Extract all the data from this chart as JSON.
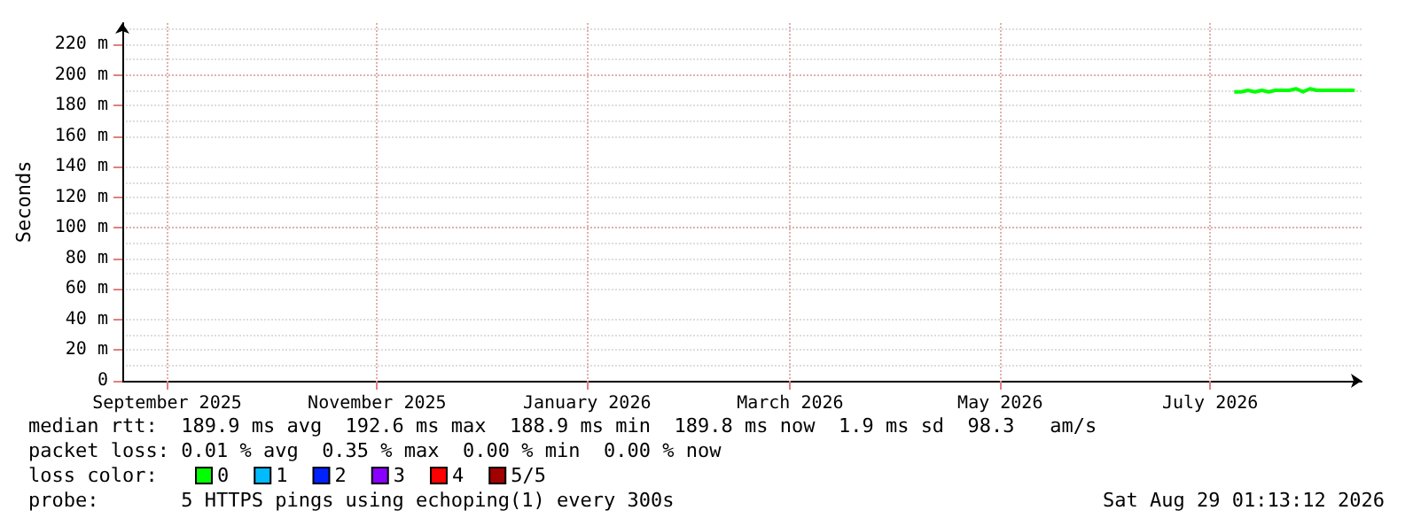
{
  "chart_data": {
    "type": "line",
    "ylabel": "Seconds",
    "xlim": [
      "2025-08-19",
      "2026-08-14"
    ],
    "xticks": [
      {
        "value": "2025-09-01",
        "label": "September 2025"
      },
      {
        "value": "2025-11-01",
        "label": "November 2025"
      },
      {
        "value": "2026-01-01",
        "label": "January 2026"
      },
      {
        "value": "2026-03-01",
        "label": "March 2026"
      },
      {
        "value": "2026-05-01",
        "label": "May 2026"
      },
      {
        "value": "2026-07-01",
        "label": "July 2026"
      }
    ],
    "ylim": [
      0,
      234
    ],
    "yticks": [
      0,
      {
        "value": 20,
        "label": "20 m"
      },
      {
        "value": 40,
        "label": "40 m"
      },
      {
        "value": 60,
        "label": "60 m"
      },
      {
        "value": 80,
        "label": "80 m"
      },
      {
        "value": 100,
        "label": "100 m"
      },
      {
        "value": 120,
        "label": "120 m"
      },
      {
        "value": 140,
        "label": "140 m"
      },
      {
        "value": 160,
        "label": "160 m"
      },
      {
        "value": 180,
        "label": "180 m"
      },
      {
        "value": 200,
        "label": "200 m"
      },
      {
        "value": 220,
        "label": "220 m"
      }
    ],
    "grid": true,
    "legend": "bottom left",
    "marker": "none",
    "line_style": "solid",
    "series": [
      {
        "name": "0",
        "color": "#00ff00",
        "x": [
          "2026-07-08",
          "2026-07-10",
          "2026-07-12",
          "2026-07-14",
          "2026-07-16",
          "2026-07-18",
          "2026-07-20",
          "2026-07-22",
          "2026-07-24",
          "2026-07-26",
          "2026-07-28",
          "2026-07-30",
          "2026-08-01",
          "2026-08-03",
          "2026-08-05",
          "2026-08-07",
          "2026-08-09",
          "2026-08-12"
        ],
        "values": [
          189,
          189,
          190,
          189,
          190,
          189,
          190,
          190,
          190,
          191,
          189,
          191,
          190,
          190,
          190,
          190,
          190,
          190
        ]
      },
      {
        "name": "1",
        "color": "#00bbff"
      },
      {
        "name": "2",
        "color": "#0022ff"
      },
      {
        "name": "3",
        "color": "#8a00ff"
      },
      {
        "name": "4",
        "color": "#ff0000"
      },
      {
        "name": "5/5",
        "color": "#a10000"
      }
    ],
    "annotations": [
      "median rtt:  189.9 ms avg  192.6 ms max  188.9 ms min  189.8 ms now  1.9 ms sd  98.3   am/s",
      "packet loss: 0.01 % avg  0.35 % max  0.00 % min  0.00 % now",
      "loss color:",
      "probe:       5 HTTPS pings using echoping(1) every 300s",
      "Sat Aug 29 01:13:12 2026"
    ]
  }
}
